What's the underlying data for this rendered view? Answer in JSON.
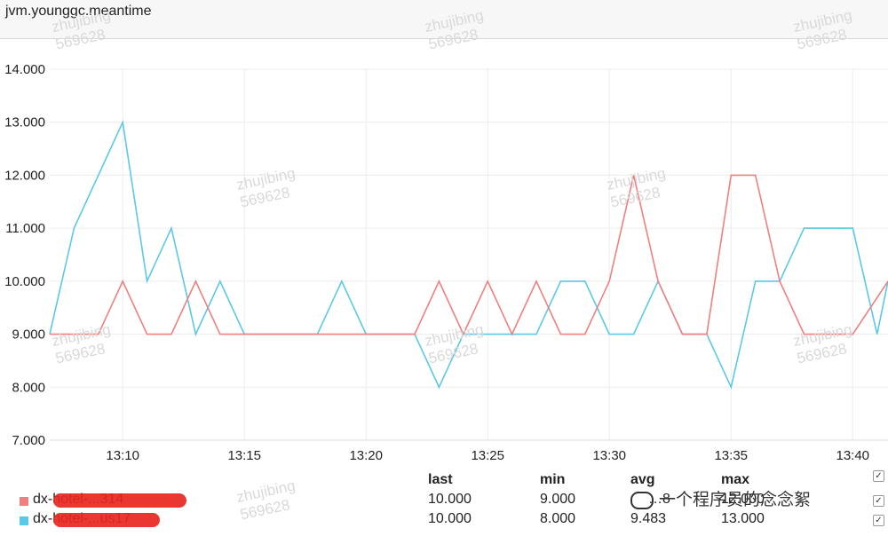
{
  "header": {
    "title": "jvm.younggc.meantime"
  },
  "chart_data": {
    "type": "line",
    "title": "jvm.younggc.meantime",
    "ylim": [
      7,
      14
    ],
    "yticks": [
      7,
      8,
      9,
      10,
      11,
      12,
      13,
      14
    ],
    "ytick_labels": [
      "7.000",
      "8.000",
      "9.000",
      "10.000",
      "11.000",
      "12.000",
      "13.000",
      "14.000"
    ],
    "x_ticks": [
      {
        "label": "13:10",
        "minute": 3
      },
      {
        "label": "13:15",
        "minute": 8
      },
      {
        "label": "13:20",
        "minute": 13
      },
      {
        "label": "13:25",
        "minute": 18
      },
      {
        "label": "13:30",
        "minute": 23
      },
      {
        "label": "13:35",
        "minute": 28
      },
      {
        "label": "13:40",
        "minute": 33
      }
    ],
    "x_range": [
      0,
      34.45
    ],
    "grid": true,
    "series": [
      {
        "name": "dx-hotel-...314",
        "color": "#f07f7f",
        "points": [
          [
            0,
            9
          ],
          [
            1,
            9
          ],
          [
            2,
            9
          ],
          [
            3,
            10
          ],
          [
            4,
            9
          ],
          [
            5,
            9
          ],
          [
            6,
            10
          ],
          [
            7,
            9
          ],
          [
            8,
            9
          ],
          [
            9,
            9
          ],
          [
            10,
            9
          ],
          [
            11,
            9
          ],
          [
            12,
            9
          ],
          [
            13,
            9
          ],
          [
            14,
            9
          ],
          [
            15,
            9
          ],
          [
            16,
            10
          ],
          [
            17,
            9
          ],
          [
            18,
            10
          ],
          [
            19,
            9
          ],
          [
            20,
            10
          ],
          [
            21,
            9
          ],
          [
            22,
            9
          ],
          [
            23,
            10
          ],
          [
            24,
            12
          ],
          [
            25,
            10
          ],
          [
            26,
            9
          ],
          [
            27,
            9
          ],
          [
            28,
            12
          ],
          [
            29,
            12
          ],
          [
            30,
            10
          ],
          [
            31,
            9
          ],
          [
            32,
            9
          ],
          [
            33,
            9
          ],
          [
            34.45,
            10
          ]
        ]
      },
      {
        "name": "dx-hotel-...us17",
        "color": "#5bc8e8",
        "points": [
          [
            0,
            9
          ],
          [
            1,
            11
          ],
          [
            2,
            12
          ],
          [
            3,
            13
          ],
          [
            4,
            10
          ],
          [
            5,
            11
          ],
          [
            6,
            9
          ],
          [
            7,
            10
          ],
          [
            8,
            9
          ],
          [
            9,
            9
          ],
          [
            10,
            9
          ],
          [
            11,
            9
          ],
          [
            12,
            10
          ],
          [
            13,
            9
          ],
          [
            14,
            9
          ],
          [
            15,
            9
          ],
          [
            16,
            8
          ],
          [
            17,
            9
          ],
          [
            18,
            9
          ],
          [
            19,
            9
          ],
          [
            20,
            9
          ],
          [
            21,
            10
          ],
          [
            22,
            10
          ],
          [
            23,
            9
          ],
          [
            24,
            9
          ],
          [
            25,
            10
          ],
          [
            26,
            9
          ],
          [
            27,
            9
          ],
          [
            28,
            8
          ],
          [
            29,
            10
          ],
          [
            30,
            10
          ],
          [
            31,
            11
          ],
          [
            32,
            11
          ],
          [
            33,
            11
          ],
          [
            34,
            9
          ],
          [
            34.45,
            10
          ]
        ]
      }
    ]
  },
  "legend": {
    "headers": {
      "last": "last",
      "min": "min",
      "avg": "avg",
      "max": "max"
    },
    "rows": [
      {
        "name": "dx-hotel-...314",
        "color": "#f07f7f",
        "last": "10.000",
        "min": "9.000",
        "avg": "…8",
        "max": "12.000",
        "checked": true
      },
      {
        "name": "dx-hotel-...us17",
        "color": "#5bc8e8",
        "last": "10.000",
        "min": "8.000",
        "avg": "9.483",
        "max": "13.000",
        "checked": true
      }
    ],
    "header_checked": true
  },
  "watermark": {
    "line1": "zhujibing",
    "line2": "569628"
  },
  "brand": {
    "text": "一个程序员的念念絮"
  }
}
